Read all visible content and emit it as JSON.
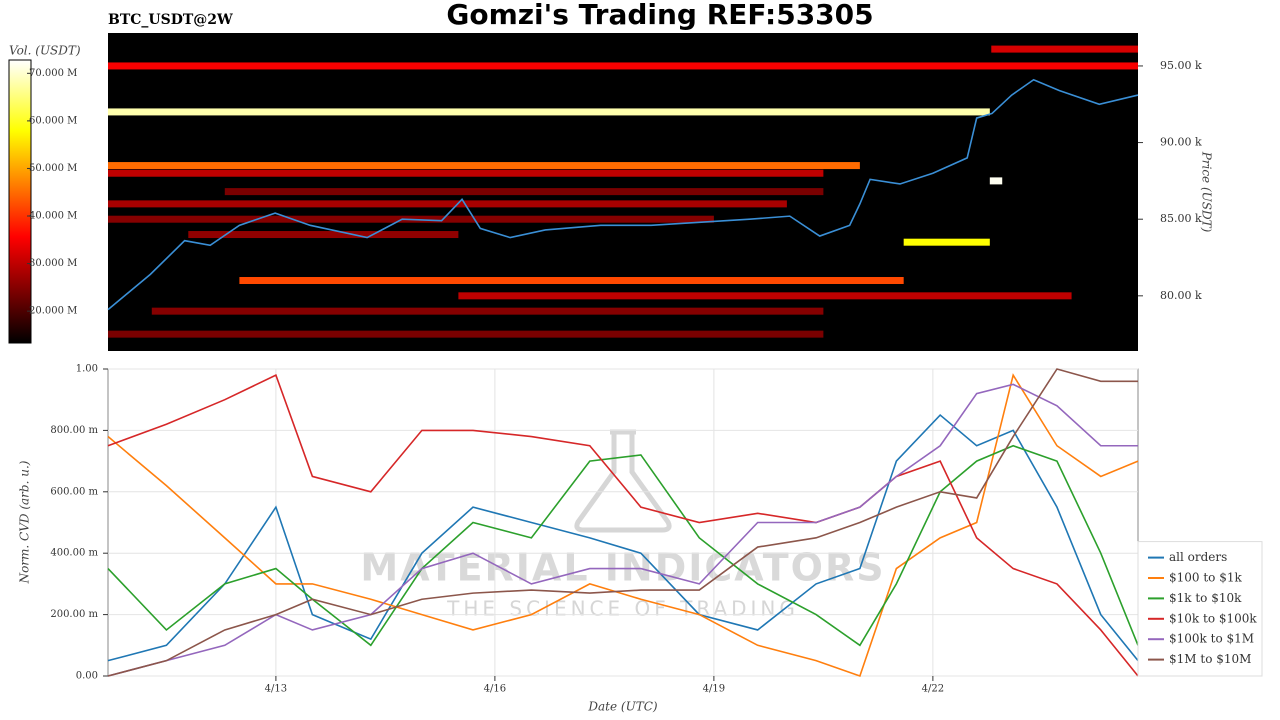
{
  "title": "Gomzi's Trading REF:53305",
  "watermark": [
    "MATERIAL INDICATORS",
    "THE SCIENCE OF TRADING"
  ],
  "chart_data": [
    {
      "type": "heatmap",
      "subtitle": "BTC_USDT@2W",
      "ylabel": "Price (USDT)",
      "colorbar_label": "Vol. (USDT)",
      "xlim": [
        10.7,
        24.81
      ],
      "ylim": [
        76400,
        97150
      ],
      "yticks": [
        {
          "value": 80000,
          "label": "80.00 k"
        },
        {
          "value": 85000,
          "label": "85.00 k"
        },
        {
          "value": 90000,
          "label": "90.00 k"
        },
        {
          "value": 95000,
          "label": "95.00 k"
        }
      ],
      "clim": [
        13300000,
        72800000
      ],
      "colormap": "hot",
      "cticks": [
        {
          "value": 20000000,
          "label": "20.000 M"
        },
        {
          "value": 30000000,
          "label": "30.000 M"
        },
        {
          "value": 40000000,
          "label": "40.000 M"
        },
        {
          "value": 50000000,
          "label": "50.000 M"
        },
        {
          "value": 60000000,
          "label": "60.000 M"
        },
        {
          "value": 70000000,
          "label": "70.000 M"
        }
      ],
      "cells": {
        "x0": [
          10.7,
          10.7,
          22.8,
          10.7,
          10.7,
          10.7,
          10.7,
          21.6,
          22.78,
          12.5,
          15.5,
          11.3,
          10.7,
          11.8,
          12.3
        ],
        "x1": [
          22.78,
          24.81,
          24.81,
          21.0,
          20.5,
          20.0,
          19.0,
          22.78,
          22.95,
          21.6,
          23.9,
          20.5,
          20.5,
          15.5,
          20.5
        ],
        "y": [
          92000,
          95000,
          96100,
          88500,
          88000,
          86000,
          85000,
          83500,
          87500,
          81000,
          80000,
          79000,
          77500,
          84000,
          86800
        ],
        "values": [
          68000000,
          35000000,
          32000000,
          45000000,
          30000000,
          28000000,
          25000000,
          58000000,
          72000000,
          42000000,
          30000000,
          25000000,
          24000000,
          26000000,
          24000000
        ]
      },
      "price": {
        "color": "#3a8fd6",
        "x": [
          10.7,
          11.28,
          11.75,
          12.1,
          12.5,
          12.99,
          13.47,
          14.25,
          14.73,
          15.27,
          15.55,
          15.8,
          16.21,
          16.69,
          17.45,
          18.14,
          18.8,
          19.49,
          20.04,
          20.45,
          20.86,
          21.0,
          21.14,
          21.55,
          22.0,
          22.47,
          22.6,
          22.81,
          23.08,
          23.38,
          23.73,
          24.28,
          24.81
        ],
        "values": [
          79100,
          81400,
          83600,
          83300,
          84600,
          85400,
          84600,
          83800,
          85000,
          84900,
          86300,
          84400,
          83800,
          84300,
          84600,
          84600,
          84800,
          85000,
          85200,
          83900,
          84600,
          86000,
          87600,
          87300,
          88000,
          89000,
          91600,
          91900,
          93100,
          94100,
          93400,
          92500,
          93100
        ]
      }
    },
    {
      "type": "line",
      "ylabel": "Norm. CVD (arb. u.)",
      "xlabel": "Date (UTC)",
      "xlim": [
        10.7,
        24.81
      ],
      "xticks": [
        {
          "value": 13,
          "label": "4/13"
        },
        {
          "value": 16,
          "label": "4/16"
        },
        {
          "value": 19,
          "label": "4/19"
        },
        {
          "value": 22,
          "label": "4/22"
        }
      ],
      "ylim": [
        0,
        1
      ],
      "yticks": [
        {
          "value": 0,
          "label": "0.00"
        },
        {
          "value": 0.2,
          "label": "200.00 m"
        },
        {
          "value": 0.4,
          "label": "400.00 m"
        },
        {
          "value": 0.6,
          "label": "600.00 m"
        },
        {
          "value": 0.8,
          "label": "800.00 m"
        },
        {
          "value": 1,
          "label": "1.00"
        }
      ],
      "grid": true,
      "legend": "lower right",
      "x": [
        10.7,
        11.5,
        12.3,
        13,
        13.5,
        14.3,
        15,
        15.7,
        16.5,
        17.3,
        18,
        18.8,
        19.6,
        20.4,
        21,
        21.5,
        22.1,
        22.6,
        23.1,
        23.7,
        24.3,
        24.81
      ],
      "series": [
        {
          "name": "all orders",
          "color": "#1f77b4",
          "values": [
            0.05,
            0.1,
            0.3,
            0.55,
            0.2,
            0.12,
            0.4,
            0.55,
            0.5,
            0.45,
            0.4,
            0.2,
            0.15,
            0.3,
            0.35,
            0.7,
            0.85,
            0.75,
            0.8,
            0.55,
            0.2,
            0.05
          ]
        },
        {
          "name": "$100 to $1k",
          "color": "#ff7f0e",
          "values": [
            0.78,
            0.62,
            0.45,
            0.3,
            0.3,
            0.25,
            0.2,
            0.15,
            0.2,
            0.3,
            0.25,
            0.2,
            0.1,
            0.05,
            0.0,
            0.35,
            0.45,
            0.5,
            0.98,
            0.75,
            0.65,
            0.7
          ]
        },
        {
          "name": "$1k to $10k",
          "color": "#2ca02c",
          "values": [
            0.35,
            0.15,
            0.3,
            0.35,
            0.25,
            0.1,
            0.35,
            0.5,
            0.45,
            0.7,
            0.72,
            0.45,
            0.3,
            0.2,
            0.1,
            0.3,
            0.6,
            0.7,
            0.75,
            0.7,
            0.4,
            0.1
          ]
        },
        {
          "name": "$10k to $100k",
          "color": "#d62728",
          "values": [
            0.75,
            0.82,
            0.9,
            0.98,
            0.65,
            0.6,
            0.8,
            0.8,
            0.78,
            0.75,
            0.55,
            0.5,
            0.53,
            0.5,
            0.55,
            0.65,
            0.7,
            0.45,
            0.35,
            0.3,
            0.15,
            0.0
          ]
        },
        {
          "name": "$100k to $1M",
          "color": "#9467bd",
          "values": [
            0.0,
            0.05,
            0.1,
            0.2,
            0.15,
            0.2,
            0.35,
            0.4,
            0.3,
            0.35,
            0.35,
            0.3,
            0.5,
            0.5,
            0.55,
            0.65,
            0.75,
            0.92,
            0.95,
            0.88,
            0.75,
            0.75
          ]
        },
        {
          "name": "$1M to $10M",
          "color": "#8c564b",
          "values": [
            0.0,
            0.05,
            0.15,
            0.2,
            0.25,
            0.2,
            0.25,
            0.27,
            0.28,
            0.27,
            0.28,
            0.28,
            0.42,
            0.45,
            0.5,
            0.55,
            0.6,
            0.58,
            0.78,
            1.0,
            0.96,
            0.96
          ]
        }
      ]
    }
  ]
}
